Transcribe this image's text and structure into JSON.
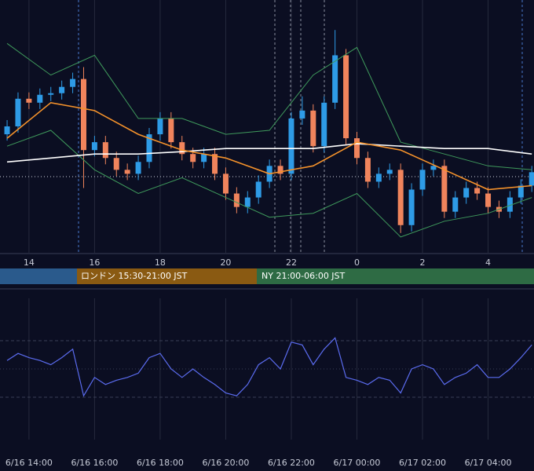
{
  "chart_data": [
    {
      "type": "candlestick",
      "xlim": [
        -0.65,
        48.2
      ],
      "ylim": [
        0,
        320
      ],
      "grid": true,
      "up_color": "#2e9be6",
      "down_color": "#f0845c",
      "xticks": [
        {
          "value": 2,
          "label": "14"
        },
        {
          "value": 8,
          "label": "16"
        },
        {
          "value": 14,
          "label": "18"
        },
        {
          "value": 20,
          "label": "20"
        },
        {
          "value": 26,
          "label": "22"
        },
        {
          "value": 32,
          "label": "0"
        },
        {
          "value": 38,
          "label": "2"
        },
        {
          "value": 44,
          "label": "4"
        }
      ],
      "open": [
        150,
        160,
        195,
        190,
        200,
        202,
        210,
        220,
        130,
        140,
        120,
        105,
        100,
        115,
        150,
        170,
        140,
        125,
        115,
        125,
        100,
        75,
        58,
        70,
        90,
        110,
        100,
        170,
        180,
        135,
        190,
        250,
        145,
        120,
        90,
        100,
        105,
        35,
        80,
        105,
        110,
        52,
        70,
        82,
        75,
        58,
        52,
        70,
        85
      ],
      "high": [
        168,
        203,
        203,
        208,
        210,
        218,
        228,
        235,
        148,
        148,
        128,
        113,
        123,
        158,
        178,
        178,
        148,
        133,
        133,
        133,
        108,
        83,
        78,
        98,
        118,
        118,
        178,
        198,
        188,
        198,
        282,
        258,
        153,
        128,
        108,
        113,
        113,
        88,
        113,
        118,
        118,
        78,
        90,
        90,
        83,
        66,
        78,
        93,
        110
      ],
      "low": [
        142,
        152,
        182,
        182,
        192,
        194,
        202,
        82,
        122,
        112,
        97,
        92,
        92,
        107,
        142,
        132,
        117,
        107,
        107,
        92,
        67,
        50,
        50,
        62,
        82,
        92,
        92,
        162,
        127,
        127,
        182,
        137,
        112,
        82,
        82,
        92,
        25,
        27,
        72,
        97,
        44,
        44,
        62,
        67,
        50,
        44,
        44,
        62,
        77
      ],
      "close": [
        160,
        195,
        190,
        200,
        202,
        210,
        220,
        130,
        140,
        120,
        105,
        100,
        115,
        150,
        170,
        140,
        125,
        115,
        125,
        100,
        75,
        58,
        70,
        90,
        110,
        100,
        170,
        180,
        135,
        190,
        250,
        145,
        120,
        90,
        100,
        105,
        35,
        80,
        105,
        110,
        52,
        70,
        82,
        75,
        58,
        52,
        70,
        85,
        102
      ],
      "lines": [
        {
          "color": "#3f9a5c",
          "x": [
            0,
            4,
            8,
            12,
            16,
            20,
            24,
            28,
            32,
            36,
            40,
            44,
            48
          ],
          "values": [
            265,
            225,
            250,
            170,
            170,
            150,
            155,
            225,
            260,
            140,
            125,
            110,
            105
          ]
        },
        {
          "color": "#3f9a5c",
          "x": [
            0,
            4,
            8,
            12,
            16,
            20,
            24,
            28,
            32,
            36,
            40,
            44,
            48
          ],
          "values": [
            135,
            155,
            105,
            75,
            95,
            70,
            45,
            50,
            75,
            20,
            40,
            50,
            70
          ]
        },
        {
          "color": "#ffffff",
          "x": [
            0,
            4,
            8,
            12,
            16,
            20,
            24,
            28,
            32,
            36,
            40,
            44,
            48
          ],
          "values": [
            115,
            120,
            125,
            125,
            128,
            132,
            132,
            132,
            138,
            135,
            132,
            132,
            125
          ]
        },
        {
          "color": "#f5922b",
          "x": [
            0,
            4,
            8,
            12,
            16,
            20,
            24,
            28,
            32,
            36,
            40,
            44,
            48
          ],
          "values": [
            145,
            190,
            180,
            150,
            130,
            120,
            100,
            110,
            140,
            130,
            105,
            80,
            85
          ]
        }
      ]
    },
    {
      "type": "line",
      "xlim": [
        -0.65,
        48.2
      ],
      "ylim": [
        0,
        100
      ],
      "yticks": [
        30,
        50,
        70
      ],
      "grid": true,
      "xticks": [
        {
          "value": 2,
          "label": "6/16 14:00"
        },
        {
          "value": 8,
          "label": "6/16 16:00"
        },
        {
          "value": 14,
          "label": "6/16 18:00"
        },
        {
          "value": 20,
          "label": "6/16 20:00"
        },
        {
          "value": 26,
          "label": "6/16 22:00"
        },
        {
          "value": 32,
          "label": "6/17 00:00"
        },
        {
          "value": 38,
          "label": "6/17 02:00"
        },
        {
          "value": 44,
          "label": "6/17 04:00"
        }
      ],
      "series": [
        {
          "color": "#5b6cf0",
          "values": [
            56,
            61,
            58,
            56,
            53,
            58,
            64,
            31,
            44,
            39,
            42,
            44,
            47,
            58,
            61,
            50,
            44,
            50,
            44,
            39,
            33,
            31,
            39,
            53,
            58,
            50,
            69,
            67,
            53,
            64,
            72,
            44,
            42,
            39,
            44,
            42,
            33,
            50,
            53,
            50,
            39,
            44,
            47,
            53,
            44,
            44,
            50,
            58,
            67
          ]
        }
      ]
    }
  ],
  "sessions": [
    {
      "color": "#2a5a8c"
    },
    {
      "label": "ロンドン 15:30-21:00 JST",
      "color": "#8a5a12"
    },
    {
      "label": "NY 21:00-06:00 JST",
      "color": "#2e6b44"
    }
  ]
}
